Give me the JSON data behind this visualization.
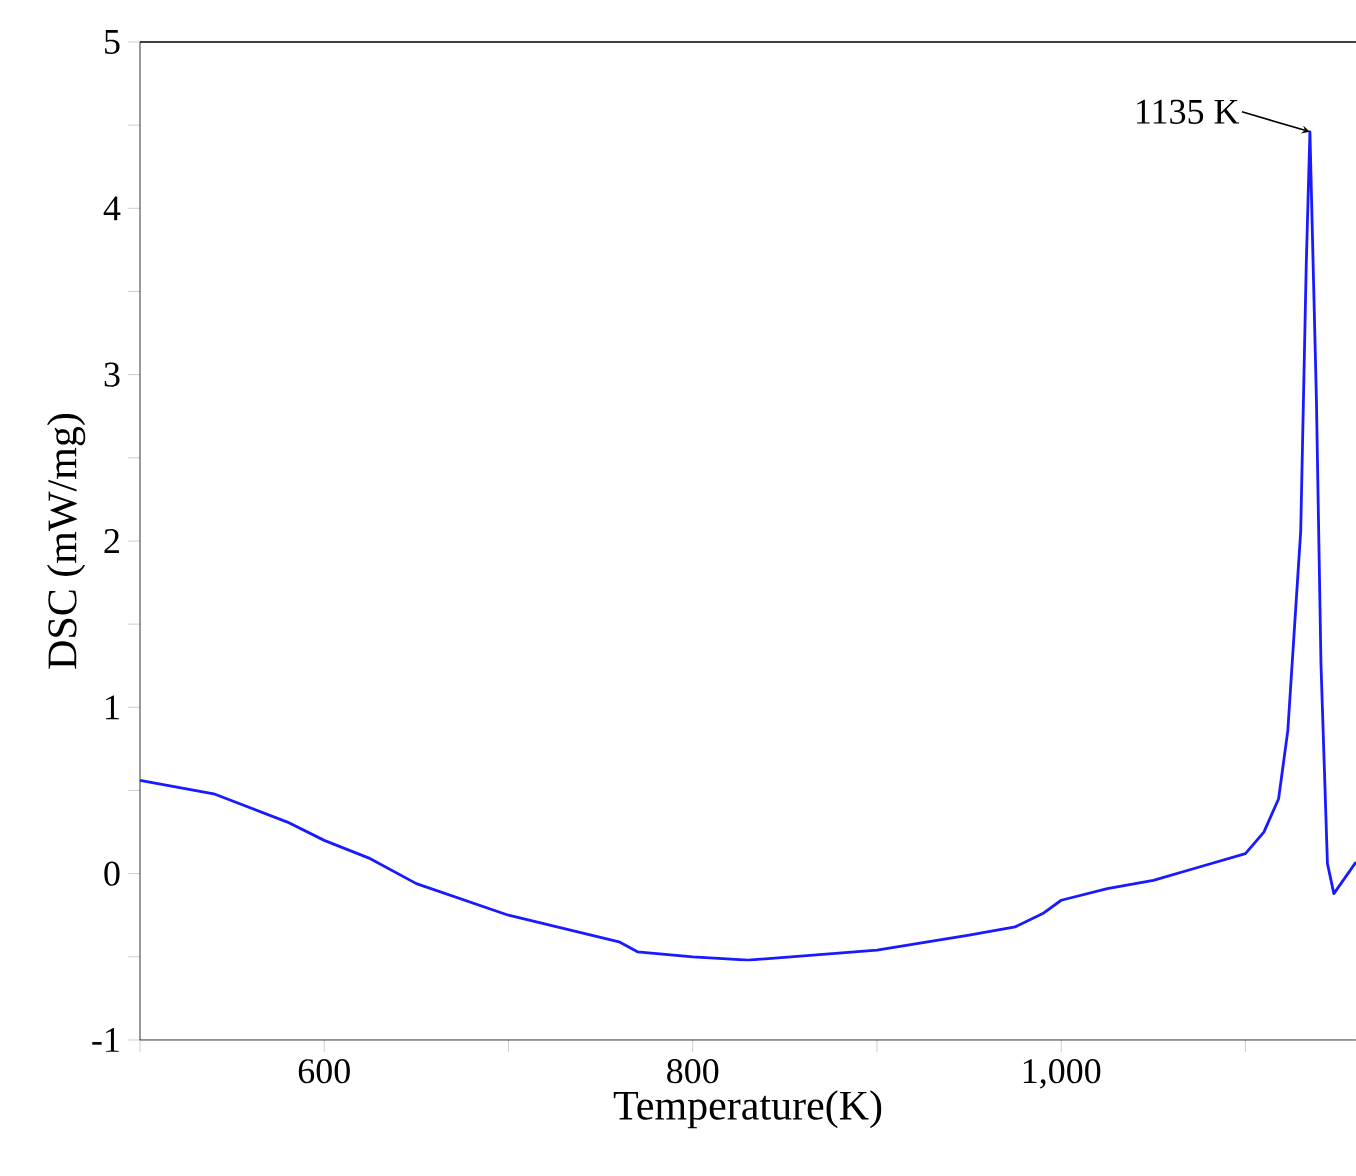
{
  "chart_data": {
    "type": "line",
    "xlabel": "Temperature(K)",
    "ylabel": "DSC (mW/mg)",
    "xlim": [
      500,
      1160
    ],
    "ylim": [
      -1,
      5
    ],
    "xticks": [
      {
        "value": 500,
        "label": null
      },
      600,
      {
        "value": 700,
        "label": null
      },
      800,
      {
        "value": 900,
        "label": null
      },
      {
        "value": 1000,
        "label": "1,000"
      },
      {
        "value": 1100,
        "label": null
      }
    ],
    "yticks": [
      -1,
      {
        "value": -0.5,
        "label": null
      },
      0,
      {
        "value": 0.5,
        "label": null
      },
      1,
      {
        "value": 1.5,
        "label": null
      },
      2,
      {
        "value": 2.5,
        "label": null
      },
      3,
      {
        "value": 3.5,
        "label": null
      },
      4,
      {
        "value": 4.5,
        "label": null
      },
      5
    ],
    "grid": false,
    "marker": "none",
    "line_style": "solid",
    "annotations": [
      {
        "text": "1135 K",
        "x": 1135,
        "y": 4.46
      }
    ],
    "series": [
      {
        "color": "#1a1aff",
        "x": [
          500,
          540,
          580,
          600,
          625,
          650,
          700,
          760,
          770,
          800,
          830,
          900,
          950,
          975,
          990,
          1000,
          1025,
          1050,
          1075,
          1100,
          1110,
          1118,
          1123,
          1130,
          1133,
          1135,
          1138.5,
          1141,
          1144.5,
          1148,
          1160
        ],
        "values": [
          0.56,
          0.48,
          0.31,
          0.2,
          0.09,
          -0.06,
          -0.25,
          -0.41,
          -0.47,
          -0.5,
          -0.52,
          -0.46,
          -0.37,
          -0.32,
          -0.24,
          -0.16,
          -0.09,
          -0.04,
          0.04,
          0.12,
          0.25,
          0.45,
          0.86,
          2.06,
          3.66,
          4.46,
          2.86,
          1.26,
          0.06,
          -0.12,
          0.07
        ]
      }
    ]
  }
}
